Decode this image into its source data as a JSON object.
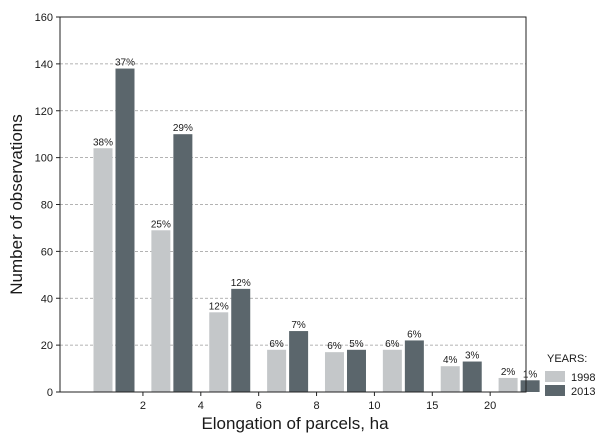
{
  "chart_data": {
    "type": "bar",
    "xlabel": "Elongation of parcels, ha",
    "ylabel": "Number of observations",
    "ylim": [
      0,
      160
    ],
    "yticks": [
      0,
      20,
      40,
      60,
      80,
      100,
      120,
      140,
      160
    ],
    "grid": true,
    "x_tick_labels": [
      "2",
      "4",
      "6",
      "8",
      "10",
      "15",
      "20"
    ],
    "group_count": 8,
    "legend": {
      "title": "YEARS:",
      "placement": "bottom-right"
    },
    "series": [
      {
        "name": "1998",
        "color": "#c4c7c9",
        "values": [
          104,
          69,
          34,
          18,
          17,
          18,
          11,
          6
        ],
        "labels": [
          "38%",
          "25%",
          "12%",
          "6%",
          "6%",
          "6%",
          "4%",
          "2%"
        ]
      },
      {
        "name": "2013",
        "color": "#5b666c",
        "values": [
          138,
          110,
          44,
          26,
          18,
          22,
          13,
          5
        ],
        "labels": [
          "37%",
          "29%",
          "12%",
          "7%",
          "5%",
          "6%",
          "3%",
          "1%"
        ]
      }
    ]
  }
}
